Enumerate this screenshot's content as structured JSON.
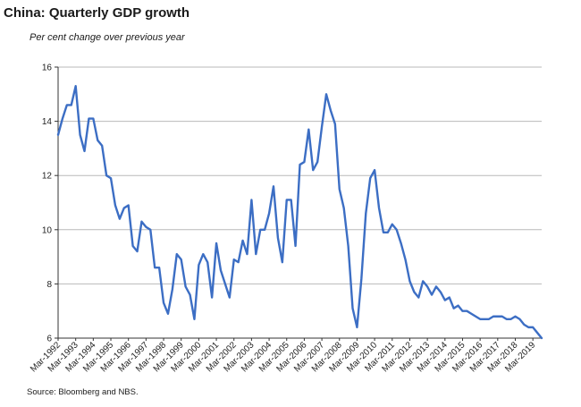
{
  "chart_data": {
    "type": "line",
    "title": "China: Quarterly GDP growth",
    "subtitle": "Per cent change over previous year",
    "source": "Source: Bloomberg and NBS.",
    "xlabel": "",
    "ylabel": "",
    "ylim": [
      6,
      16
    ],
    "yticks": [
      6,
      8,
      10,
      12,
      14,
      16
    ],
    "grid": true,
    "legend": "none",
    "line_color": "#3c6ec4",
    "x_tick_labels": [
      "Mar-1992",
      "Mar-1993",
      "Mar-1994",
      "Mar-1995",
      "Mar-1996",
      "Mar-1997",
      "Mar-1998",
      "Mar-1999",
      "Mar-2000",
      "Mar-2001",
      "Mar-2002",
      "Mar-2003",
      "Mar-2004",
      "Mar-2005",
      "Mar-2006",
      "Mar-2007",
      "Mar-2008",
      "Mar-2009",
      "Mar-2010",
      "Mar-2011",
      "Mar-2012",
      "Mar-2013",
      "Mar-2014",
      "Mar-2015",
      "Mar-2016",
      "Mar-2017",
      "Mar-2018",
      "Mar-2019"
    ],
    "start_quarter": "Mar-1992",
    "frequency": "quarterly",
    "series": [
      {
        "values": [
          13.5,
          14.1,
          14.6,
          14.6,
          15.3,
          13.5,
          12.9,
          14.1,
          14.1,
          13.3,
          13.1,
          12.0,
          11.9,
          10.9,
          10.4,
          10.8,
          10.9,
          9.4,
          9.2,
          10.3,
          10.1,
          10.0,
          8.6,
          8.6,
          7.3,
          6.9,
          7.8,
          9.1,
          8.9,
          7.9,
          7.6,
          6.7,
          8.7,
          9.1,
          8.8,
          7.5,
          9.5,
          8.5,
          8.0,
          7.5,
          8.9,
          8.8,
          9.6,
          9.1,
          11.1,
          9.1,
          10.0,
          10.0,
          10.6,
          11.6,
          9.7,
          8.8,
          11.1,
          11.1,
          9.4,
          12.4,
          12.5,
          13.7,
          12.2,
          12.5,
          13.8,
          15.0,
          14.4,
          13.9,
          11.5,
          10.8,
          9.4,
          7.1,
          6.4,
          8.2,
          10.6,
          11.9,
          12.2,
          10.8,
          9.9,
          9.9,
          10.2,
          10.0,
          9.5,
          8.9,
          8.1,
          7.7,
          7.5,
          8.1,
          7.9,
          7.6,
          7.9,
          7.7,
          7.4,
          7.5,
          7.1,
          7.2,
          7.0,
          7.0,
          6.9,
          6.8,
          6.7,
          6.7,
          6.7,
          6.8,
          6.8,
          6.8,
          6.7,
          6.7,
          6.8,
          6.7,
          6.5,
          6.4,
          6.4,
          6.2,
          6.0
        ]
      }
    ]
  }
}
